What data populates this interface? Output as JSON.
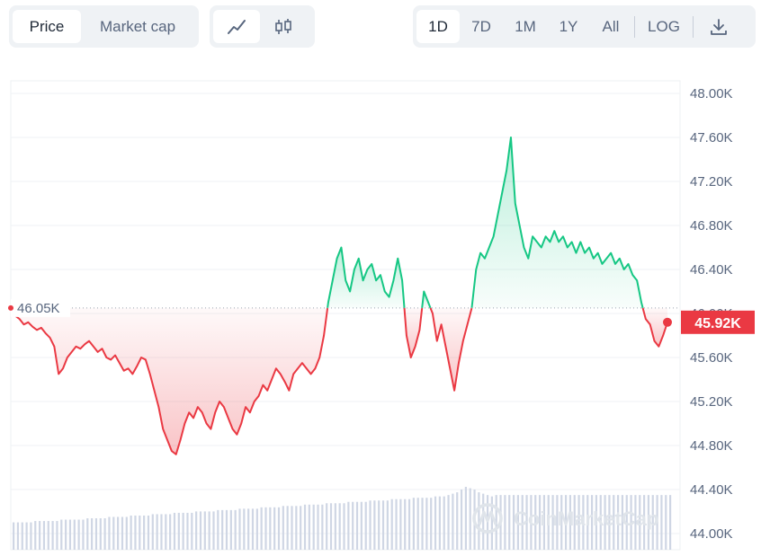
{
  "toolbar": {
    "metric_tabs": [
      "Price",
      "Market cap"
    ],
    "metric_active": "Price",
    "chart_types": [
      {
        "icon": "line-chart-icon",
        "active": true
      },
      {
        "icon": "candlestick-chart-icon",
        "active": false
      }
    ],
    "ranges": [
      "1D",
      "7D",
      "1M",
      "1Y",
      "All"
    ],
    "range_active": "1D",
    "log_label": "LOG",
    "download_icon": "download-icon"
  },
  "watermark": "CoinMarketCap",
  "chart_data": {
    "type": "line",
    "title": "",
    "xlabel": "",
    "ylabel": "",
    "ylim": [
      44000,
      48000
    ],
    "y_ticks": [
      48000,
      47600,
      47200,
      46800,
      46400,
      46000,
      45600,
      45200,
      44800,
      44400,
      44000
    ],
    "y_tick_labels": [
      "48.00K",
      "47.60K",
      "47.20K",
      "46.80K",
      "46.40K",
      "46.00K",
      "45.60K",
      "45.20K",
      "44.80K",
      "44.40K",
      "44.00K"
    ],
    "grid": true,
    "reference": {
      "value": 46050,
      "label": "46.05K"
    },
    "current": {
      "value": 45920,
      "label": "45.92K"
    },
    "colors": {
      "above": "#16c784",
      "below": "#ea3943",
      "reference": "#9aa3b1",
      "volume": "#cfd6e4"
    },
    "series": [
      {
        "values": [
          46050,
          45980,
          45950,
          45900,
          45920,
          45880,
          45850,
          45870,
          45820,
          45780,
          45700,
          45450,
          45500,
          45600,
          45650,
          45700,
          45680,
          45720,
          45750,
          45700,
          45650,
          45680,
          45600,
          45580,
          45620,
          45550,
          45480,
          45500,
          45450,
          45520,
          45600,
          45580,
          45450,
          45300,
          45150,
          44950,
          44850,
          44750,
          44720,
          44850,
          45000,
          45100,
          45050,
          45150,
          45100,
          45000,
          44950,
          45100,
          45200,
          45150,
          45050,
          44950,
          44900,
          45000,
          45150,
          45100,
          45200,
          45250,
          45350,
          45300,
          45400,
          45500,
          45450,
          45380,
          45300,
          45450,
          45500,
          45550,
          45500,
          45450,
          45500,
          45600,
          45800,
          46100,
          46300,
          46500,
          46600,
          46300,
          46200,
          46400,
          46500,
          46300,
          46400,
          46450,
          46300,
          46350,
          46200,
          46150,
          46300,
          46500,
          46300,
          45800,
          45600,
          45700,
          45850,
          46200,
          46100,
          46000,
          45750,
          45900,
          45700,
          45500,
          45300,
          45550,
          45750,
          45900,
          46050,
          46400,
          46550,
          46500,
          46600,
          46700,
          46900,
          47100,
          47300,
          47600,
          47000,
          46800,
          46600,
          46500,
          46700,
          46650,
          46600,
          46700,
          46650,
          46750,
          46650,
          46700,
          46600,
          46650,
          46550,
          46650,
          46550,
          46600,
          46500,
          46550,
          46450,
          46500,
          46550,
          46450,
          46500,
          46400,
          46450,
          46350,
          46300,
          46100,
          45950,
          45900,
          45750,
          45700,
          45800,
          45920
        ]
      }
    ],
    "volume": [
      20,
      20,
      20,
      20,
      20,
      21,
      21,
      21,
      21,
      21,
      21,
      22,
      22,
      22,
      22,
      22,
      22,
      23,
      23,
      23,
      23,
      23,
      24,
      24,
      24,
      24,
      24,
      25,
      25,
      25,
      25,
      25,
      26,
      26,
      26,
      26,
      26,
      27,
      27,
      27,
      27,
      27,
      28,
      28,
      28,
      28,
      28,
      29,
      29,
      29,
      29,
      29,
      30,
      30,
      30,
      30,
      30,
      31,
      31,
      31,
      31,
      31,
      32,
      32,
      32,
      32,
      32,
      33,
      33,
      33,
      33,
      33,
      34,
      34,
      34,
      34,
      34,
      35,
      35,
      35,
      35,
      35,
      36,
      36,
      36,
      36,
      36,
      37,
      37,
      37,
      37,
      37,
      38,
      38,
      38,
      38,
      38,
      39,
      39,
      39,
      40,
      41,
      42,
      44,
      46,
      45,
      44,
      42,
      41,
      40,
      39,
      40,
      40,
      40,
      40,
      40,
      40,
      40,
      40,
      40,
      40,
      40,
      40,
      40,
      40,
      40,
      40,
      40,
      40,
      40,
      40,
      40,
      40,
      40,
      40,
      40,
      40,
      40,
      40,
      40,
      40,
      40,
      40,
      40,
      40,
      40,
      40,
      40,
      40,
      40,
      40,
      40
    ]
  }
}
